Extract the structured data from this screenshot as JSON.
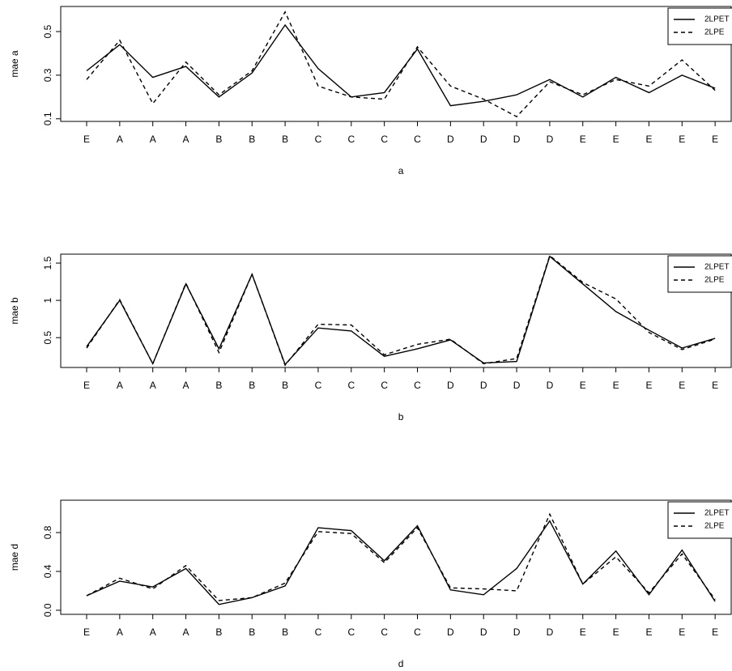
{
  "chart_data": [
    {
      "type": "line",
      "ylabel": "mae a",
      "xlabel": "a",
      "categories": [
        "E",
        "A",
        "A",
        "A",
        "B",
        "B",
        "B",
        "C",
        "C",
        "C",
        "C",
        "D",
        "D",
        "D",
        "D",
        "E",
        "E",
        "E",
        "E",
        "E"
      ],
      "series": [
        {
          "name": "2LPET",
          "color": "#000000",
          "line_style": "solid",
          "values": [
            0.32,
            0.44,
            0.29,
            0.34,
            0.2,
            0.31,
            0.53,
            0.33,
            0.2,
            0.22,
            0.42,
            0.16,
            0.18,
            0.21,
            0.28,
            0.2,
            0.29,
            0.22,
            0.3,
            0.24
          ]
        },
        {
          "name": "2LPE",
          "color": "#000000",
          "line_style": "dashed",
          "values": [
            0.28,
            0.46,
            0.17,
            0.36,
            0.21,
            0.32,
            0.59,
            0.25,
            0.2,
            0.19,
            0.43,
            0.25,
            0.19,
            0.11,
            0.27,
            0.21,
            0.28,
            0.25,
            0.37,
            0.23
          ]
        }
      ],
      "ylim": [
        0.088,
        0.615
      ],
      "yticks": [
        0.1,
        0.3,
        0.5
      ],
      "legend": "top-right"
    },
    {
      "type": "line",
      "ylabel": "mae b",
      "xlabel": "b",
      "categories": [
        "E",
        "A",
        "A",
        "A",
        "B",
        "B",
        "B",
        "C",
        "C",
        "C",
        "C",
        "D",
        "D",
        "D",
        "D",
        "E",
        "E",
        "E",
        "E",
        "E"
      ],
      "series": [
        {
          "name": "2LPET",
          "color": "#000000",
          "line_style": "solid",
          "values": [
            0.38,
            1.0,
            0.15,
            1.22,
            0.35,
            1.35,
            0.14,
            0.63,
            0.59,
            0.25,
            0.35,
            0.47,
            0.16,
            0.18,
            1.59,
            1.22,
            0.85,
            0.6,
            0.36,
            0.49
          ]
        },
        {
          "name": "2LPE",
          "color": "#000000",
          "line_style": "dashed",
          "values": [
            0.36,
            1.01,
            0.15,
            1.23,
            0.3,
            1.35,
            0.13,
            0.68,
            0.67,
            0.27,
            0.41,
            0.48,
            0.15,
            0.22,
            1.6,
            1.24,
            1.02,
            0.57,
            0.34,
            0.48
          ]
        }
      ],
      "ylim": [
        0.1,
        1.62
      ],
      "yticks": [
        0.5,
        1.0,
        1.5
      ],
      "legend": "top-right"
    },
    {
      "type": "line",
      "ylabel": "mae d",
      "xlabel": "d",
      "categories": [
        "E",
        "A",
        "A",
        "A",
        "B",
        "B",
        "B",
        "C",
        "C",
        "C",
        "C",
        "D",
        "D",
        "D",
        "D",
        "E",
        "E",
        "E",
        "E",
        "E"
      ],
      "series": [
        {
          "name": "2LPET",
          "color": "#000000",
          "line_style": "solid",
          "values": [
            0.15,
            0.3,
            0.24,
            0.43,
            0.06,
            0.13,
            0.25,
            0.85,
            0.82,
            0.51,
            0.87,
            0.21,
            0.16,
            0.43,
            0.92,
            0.27,
            0.61,
            0.16,
            0.62,
            0.09
          ]
        },
        {
          "name": "2LPE",
          "color": "#000000",
          "line_style": "dashed",
          "values": [
            0.15,
            0.33,
            0.22,
            0.46,
            0.1,
            0.13,
            0.28,
            0.81,
            0.79,
            0.49,
            0.85,
            0.23,
            0.22,
            0.2,
            0.99,
            0.27,
            0.55,
            0.18,
            0.58,
            0.11
          ]
        }
      ],
      "ylim": [
        -0.042,
        1.133
      ],
      "yticks": [
        {
          "value": 0,
          "label": "0.0"
        },
        0.4,
        0.8
      ],
      "legend": "top-right"
    }
  ]
}
